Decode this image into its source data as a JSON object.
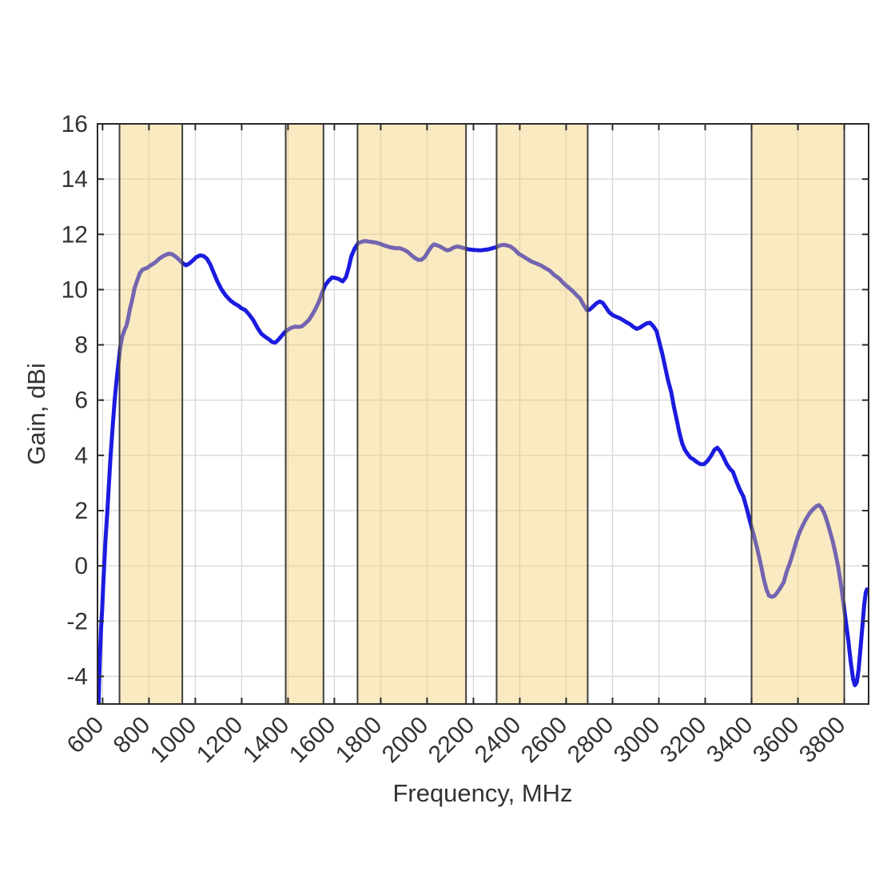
{
  "chart_data": {
    "type": "line",
    "title": "",
    "xlabel": "Frequency, MHz",
    "ylabel": "Gain, dBi",
    "xlim": [
      578,
      3905
    ],
    "ylim": [
      -5,
      16
    ],
    "x_ticks": [
      600,
      800,
      1000,
      1200,
      1400,
      1600,
      1800,
      2000,
      2200,
      2400,
      2600,
      2800,
      3000,
      3200,
      3400,
      3600,
      3800
    ],
    "y_ticks": [
      -4,
      -2,
      0,
      2,
      4,
      6,
      8,
      10,
      12,
      14,
      16
    ],
    "grid": true,
    "legend": "none",
    "series": [
      {
        "name": "gain_dBi",
        "color": "#1b1be0",
        "line_width": 5,
        "points": [
          [
            582,
            -5.4
          ],
          [
            584,
            -4.6
          ],
          [
            588,
            -3.4
          ],
          [
            593,
            -2.3
          ],
          [
            598,
            -1.6
          ],
          [
            604,
            -0.5
          ],
          [
            612,
            0.9
          ],
          [
            620,
            1.9
          ],
          [
            627,
            2.9
          ],
          [
            634,
            3.9
          ],
          [
            643,
            5.0
          ],
          [
            652,
            6.0
          ],
          [
            660,
            6.7
          ],
          [
            668,
            7.3
          ],
          [
            676,
            7.9
          ],
          [
            685,
            8.3
          ],
          [
            695,
            8.55
          ],
          [
            703,
            8.7
          ],
          [
            710,
            8.95
          ],
          [
            718,
            9.3
          ],
          [
            727,
            9.6
          ],
          [
            738,
            10.05
          ],
          [
            750,
            10.35
          ],
          [
            761,
            10.6
          ],
          [
            772,
            10.72
          ],
          [
            783,
            10.76
          ],
          [
            795,
            10.8
          ],
          [
            807,
            10.88
          ],
          [
            820,
            10.94
          ],
          [
            832,
            11.02
          ],
          [
            845,
            11.12
          ],
          [
            859,
            11.2
          ],
          [
            872,
            11.26
          ],
          [
            886,
            11.3
          ],
          [
            900,
            11.28
          ],
          [
            914,
            11.2
          ],
          [
            928,
            11.1
          ],
          [
            943,
            10.97
          ],
          [
            960,
            10.88
          ],
          [
            975,
            10.95
          ],
          [
            990,
            11.06
          ],
          [
            1005,
            11.18
          ],
          [
            1020,
            11.24
          ],
          [
            1035,
            11.22
          ],
          [
            1050,
            11.12
          ],
          [
            1065,
            10.9
          ],
          [
            1080,
            10.6
          ],
          [
            1095,
            10.3
          ],
          [
            1112,
            10.02
          ],
          [
            1130,
            9.8
          ],
          [
            1150,
            9.62
          ],
          [
            1168,
            9.5
          ],
          [
            1185,
            9.42
          ],
          [
            1200,
            9.32
          ],
          [
            1215,
            9.26
          ],
          [
            1232,
            9.1
          ],
          [
            1250,
            8.9
          ],
          [
            1268,
            8.62
          ],
          [
            1285,
            8.4
          ],
          [
            1300,
            8.3
          ],
          [
            1318,
            8.2
          ],
          [
            1332,
            8.1
          ],
          [
            1345,
            8.08
          ],
          [
            1358,
            8.18
          ],
          [
            1372,
            8.32
          ],
          [
            1385,
            8.45
          ],
          [
            1400,
            8.55
          ],
          [
            1415,
            8.62
          ],
          [
            1430,
            8.66
          ],
          [
            1445,
            8.65
          ],
          [
            1460,
            8.67
          ],
          [
            1475,
            8.78
          ],
          [
            1490,
            8.9
          ],
          [
            1505,
            9.1
          ],
          [
            1520,
            9.32
          ],
          [
            1535,
            9.6
          ],
          [
            1548,
            9.9
          ],
          [
            1560,
            10.15
          ],
          [
            1575,
            10.32
          ],
          [
            1590,
            10.44
          ],
          [
            1605,
            10.42
          ],
          [
            1620,
            10.38
          ],
          [
            1636,
            10.3
          ],
          [
            1650,
            10.45
          ],
          [
            1662,
            10.8
          ],
          [
            1673,
            11.2
          ],
          [
            1688,
            11.5
          ],
          [
            1703,
            11.68
          ],
          [
            1718,
            11.73
          ],
          [
            1733,
            11.76
          ],
          [
            1750,
            11.74
          ],
          [
            1766,
            11.72
          ],
          [
            1782,
            11.7
          ],
          [
            1800,
            11.65
          ],
          [
            1815,
            11.6
          ],
          [
            1830,
            11.56
          ],
          [
            1848,
            11.52
          ],
          [
            1865,
            11.5
          ],
          [
            1882,
            11.5
          ],
          [
            1900,
            11.44
          ],
          [
            1916,
            11.37
          ],
          [
            1932,
            11.25
          ],
          [
            1948,
            11.14
          ],
          [
            1962,
            11.08
          ],
          [
            1976,
            11.08
          ],
          [
            1990,
            11.18
          ],
          [
            2005,
            11.38
          ],
          [
            2018,
            11.55
          ],
          [
            2030,
            11.64
          ],
          [
            2044,
            11.6
          ],
          [
            2058,
            11.55
          ],
          [
            2072,
            11.48
          ],
          [
            2086,
            11.42
          ],
          [
            2100,
            11.45
          ],
          [
            2114,
            11.52
          ],
          [
            2128,
            11.56
          ],
          [
            2145,
            11.54
          ],
          [
            2160,
            11.5
          ],
          [
            2178,
            11.46
          ],
          [
            2195,
            11.44
          ],
          [
            2212,
            11.43
          ],
          [
            2230,
            11.42
          ],
          [
            2248,
            11.44
          ],
          [
            2265,
            11.46
          ],
          [
            2282,
            11.5
          ],
          [
            2300,
            11.54
          ],
          [
            2315,
            11.6
          ],
          [
            2330,
            11.62
          ],
          [
            2345,
            11.6
          ],
          [
            2360,
            11.56
          ],
          [
            2378,
            11.45
          ],
          [
            2395,
            11.3
          ],
          [
            2412,
            11.22
          ],
          [
            2430,
            11.12
          ],
          [
            2450,
            11.02
          ],
          [
            2470,
            10.95
          ],
          [
            2490,
            10.88
          ],
          [
            2510,
            10.78
          ],
          [
            2530,
            10.68
          ],
          [
            2550,
            10.52
          ],
          [
            2570,
            10.4
          ],
          [
            2590,
            10.22
          ],
          [
            2610,
            10.08
          ],
          [
            2628,
            9.95
          ],
          [
            2645,
            9.8
          ],
          [
            2660,
            9.68
          ],
          [
            2675,
            9.45
          ],
          [
            2690,
            9.25
          ],
          [
            2702,
            9.28
          ],
          [
            2715,
            9.38
          ],
          [
            2730,
            9.5
          ],
          [
            2745,
            9.57
          ],
          [
            2758,
            9.52
          ],
          [
            2772,
            9.35
          ],
          [
            2786,
            9.18
          ],
          [
            2800,
            9.08
          ],
          [
            2815,
            9.02
          ],
          [
            2830,
            8.97
          ],
          [
            2845,
            8.9
          ],
          [
            2860,
            8.82
          ],
          [
            2875,
            8.75
          ],
          [
            2890,
            8.65
          ],
          [
            2904,
            8.58
          ],
          [
            2918,
            8.62
          ],
          [
            2932,
            8.7
          ],
          [
            2948,
            8.78
          ],
          [
            2962,
            8.8
          ],
          [
            2976,
            8.68
          ],
          [
            2990,
            8.5
          ],
          [
            3002,
            8.1
          ],
          [
            3014,
            7.7
          ],
          [
            3026,
            7.25
          ],
          [
            3040,
            6.7
          ],
          [
            3053,
            6.3
          ],
          [
            3065,
            5.75
          ],
          [
            3077,
            5.3
          ],
          [
            3088,
            4.85
          ],
          [
            3100,
            4.45
          ],
          [
            3112,
            4.2
          ],
          [
            3124,
            4.05
          ],
          [
            3136,
            3.92
          ],
          [
            3150,
            3.85
          ],
          [
            3165,
            3.75
          ],
          [
            3180,
            3.68
          ],
          [
            3195,
            3.68
          ],
          [
            3210,
            3.8
          ],
          [
            3225,
            3.98
          ],
          [
            3240,
            4.2
          ],
          [
            3252,
            4.28
          ],
          [
            3265,
            4.15
          ],
          [
            3278,
            3.95
          ],
          [
            3292,
            3.7
          ],
          [
            3306,
            3.52
          ],
          [
            3320,
            3.4
          ],
          [
            3335,
            3.05
          ],
          [
            3350,
            2.75
          ],
          [
            3365,
            2.5
          ],
          [
            3380,
            2.05
          ],
          [
            3395,
            1.55
          ],
          [
            3410,
            1.1
          ],
          [
            3425,
            0.6
          ],
          [
            3440,
            0.05
          ],
          [
            3452,
            -0.45
          ],
          [
            3464,
            -0.85
          ],
          [
            3475,
            -1.08
          ],
          [
            3488,
            -1.12
          ],
          [
            3500,
            -1.08
          ],
          [
            3512,
            -0.95
          ],
          [
            3524,
            -0.8
          ],
          [
            3538,
            -0.6
          ],
          [
            3552,
            -0.2
          ],
          [
            3565,
            0.1
          ],
          [
            3578,
            0.45
          ],
          [
            3592,
            0.85
          ],
          [
            3606,
            1.2
          ],
          [
            3620,
            1.45
          ],
          [
            3635,
            1.7
          ],
          [
            3650,
            1.9
          ],
          [
            3665,
            2.05
          ],
          [
            3678,
            2.15
          ],
          [
            3690,
            2.2
          ],
          [
            3702,
            2.1
          ],
          [
            3714,
            1.9
          ],
          [
            3726,
            1.6
          ],
          [
            3738,
            1.25
          ],
          [
            3750,
            0.9
          ],
          [
            3762,
            0.45
          ],
          [
            3774,
            -0.05
          ],
          [
            3786,
            -0.7
          ],
          [
            3798,
            -1.45
          ],
          [
            3808,
            -2.1
          ],
          [
            3818,
            -2.75
          ],
          [
            3828,
            -3.5
          ],
          [
            3838,
            -4.1
          ],
          [
            3846,
            -4.32
          ],
          [
            3854,
            -4.22
          ],
          [
            3862,
            -3.75
          ],
          [
            3870,
            -3.0
          ],
          [
            3878,
            -2.2
          ],
          [
            3886,
            -1.4
          ],
          [
            3893,
            -0.95
          ],
          [
            3898,
            -0.85
          ]
        ]
      }
    ],
    "shaded_bands": {
      "fill_color": "#f1ce6e",
      "fill_opacity": 0.42,
      "edge_color": "#3f3f3f",
      "ranges_mhz": [
        [
          673,
          944
        ],
        [
          1390,
          1553
        ],
        [
          1700,
          2168
        ],
        [
          2300,
          2693
        ],
        [
          3400,
          3800
        ]
      ]
    },
    "colors": {
      "axis": "#2a2a2a",
      "grid": "#d7d7d7",
      "tick_text": "#333333",
      "background": "#ffffff"
    }
  }
}
